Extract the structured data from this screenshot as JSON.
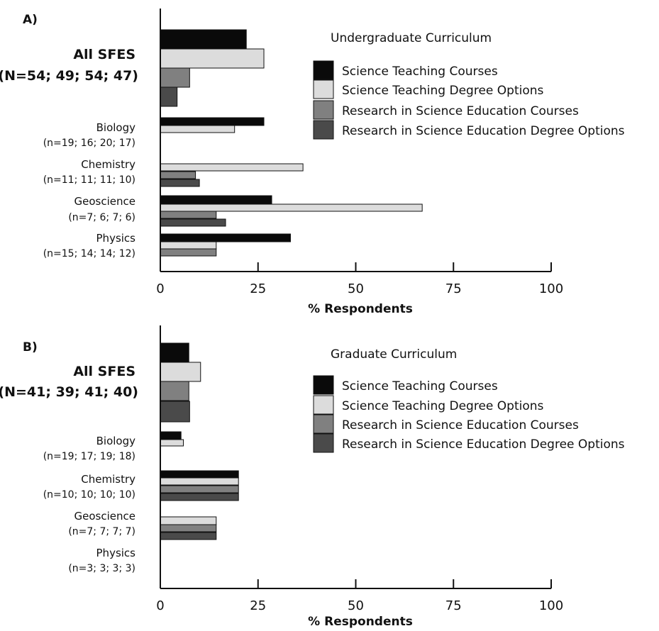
{
  "chart_data": [
    {
      "type": "bar",
      "panel": "A)",
      "title": "Undergraduate Curriculum",
      "xlabel": "% Respondents",
      "xlim": [
        0,
        100
      ],
      "xticks": [
        "0",
        "25",
        "50",
        "75",
        "100"
      ],
      "legend_position": "top-right",
      "grid": false,
      "categories": [
        {
          "name": "All SFES",
          "n": "(N=54; 49; 54; 47)",
          "emphasis": true
        },
        {
          "name": "Biology",
          "n": "(n=19; 16; 20; 17)",
          "emphasis": false
        },
        {
          "name": "Chemistry",
          "n": "(n=11; 11; 11; 10)",
          "emphasis": false
        },
        {
          "name": "Geoscience",
          "n": "(n=7; 6; 7; 6)",
          "emphasis": false
        },
        {
          "name": "Physics",
          "n": "(n=15; 14; 14; 12)",
          "emphasis": false
        }
      ],
      "series": [
        {
          "name": "Science Teaching Courses",
          "color": "#0a0a0a",
          "values": [
            22,
            26.5,
            0,
            28.5,
            33.3
          ]
        },
        {
          "name": "Science Teaching Degree Options",
          "color": "#dcdcdc",
          "values": [
            26.5,
            19,
            36.5,
            67,
            14.3
          ]
        },
        {
          "name": "Research in Science Education Courses",
          "color": "#808080",
          "values": [
            7.5,
            0,
            9,
            14.3,
            14.3
          ]
        },
        {
          "name": "Research in Science Education Degree Options",
          "color": "#4a4a4a",
          "values": [
            4.3,
            0,
            10,
            16.7,
            0
          ]
        }
      ]
    },
    {
      "type": "bar",
      "panel": "B)",
      "title": "Graduate Curriculum",
      "xlabel": "% Respondents",
      "xlim": [
        0,
        100
      ],
      "xticks": [
        "0",
        "25",
        "50",
        "75",
        "100"
      ],
      "legend_position": "top-right",
      "grid": false,
      "categories": [
        {
          "name": "All SFES",
          "n": "(N=41; 39; 41; 40)",
          "emphasis": true
        },
        {
          "name": "Biology",
          "n": "(n=19; 17; 19; 18)",
          "emphasis": false
        },
        {
          "name": "Chemistry",
          "n": "(n=10; 10; 10; 10)",
          "emphasis": false
        },
        {
          "name": "Geoscience",
          "n": "(n=7; 7; 7; 7)",
          "emphasis": false
        },
        {
          "name": "Physics",
          "n": "(n=3; 3; 3; 3)",
          "emphasis": false
        }
      ],
      "series": [
        {
          "name": "Science Teaching Courses",
          "color": "#0a0a0a",
          "values": [
            7.3,
            5.3,
            20,
            0,
            0
          ]
        },
        {
          "name": "Science Teaching Degree Options",
          "color": "#dcdcdc",
          "values": [
            10.3,
            5.9,
            20,
            14.3,
            0
          ]
        },
        {
          "name": "Research in Science Education Courses",
          "color": "#808080",
          "values": [
            7.3,
            0,
            20,
            14.3,
            0
          ]
        },
        {
          "name": "Research in Science Education Degree Options",
          "color": "#4a4a4a",
          "values": [
            7.5,
            0,
            20,
            14.3,
            0
          ]
        }
      ]
    }
  ]
}
